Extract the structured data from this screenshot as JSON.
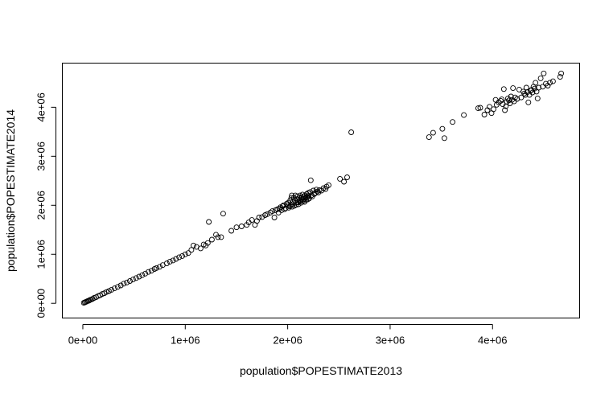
{
  "chart_data": {
    "type": "scatter",
    "title": "",
    "xlabel": "population$POPESTIMATE2013",
    "ylabel": "population$POPESTIMATE2014",
    "xlim": [
      -200000,
      4850000
    ],
    "ylim": [
      -300000,
      4900000
    ],
    "x_ticks": [
      0,
      1000000,
      2000000,
      3000000,
      4000000
    ],
    "x_tick_labels": [
      "0e+00",
      "1e+06",
      "2e+06",
      "3e+06",
      "4e+06"
    ],
    "y_ticks": [
      0,
      1000000,
      2000000,
      3000000,
      4000000
    ],
    "y_tick_labels": [
      "0e+00",
      "1e+06",
      "2e+06",
      "3e+06",
      "4e+06"
    ],
    "grid": false,
    "marker": "open-circle",
    "point_color": "#000000",
    "series": [
      {
        "points": [
          [
            10000,
            10000
          ],
          [
            20000,
            20000
          ],
          [
            30000,
            30000
          ],
          [
            40000,
            40000
          ],
          [
            50000,
            50000
          ],
          [
            60000,
            55000
          ],
          [
            70000,
            70000
          ],
          [
            80000,
            75000
          ],
          [
            95000,
            90000
          ],
          [
            110000,
            110000
          ],
          [
            130000,
            125000
          ],
          [
            150000,
            150000
          ],
          [
            170000,
            165000
          ],
          [
            190000,
            190000
          ],
          [
            210000,
            205000
          ],
          [
            230000,
            230000
          ],
          [
            255000,
            250000
          ],
          [
            280000,
            275000
          ],
          [
            310000,
            305000
          ],
          [
            340000,
            335000
          ],
          [
            370000,
            365000
          ],
          [
            400000,
            400000
          ],
          [
            430000,
            425000
          ],
          [
            460000,
            455000
          ],
          [
            490000,
            485000
          ],
          [
            520000,
            515000
          ],
          [
            550000,
            545000
          ],
          [
            580000,
            575000
          ],
          [
            610000,
            605000
          ],
          [
            640000,
            640000
          ],
          [
            670000,
            665000
          ],
          [
            700000,
            700000
          ],
          [
            720000,
            720000
          ],
          [
            750000,
            745000
          ],
          [
            780000,
            780000
          ],
          [
            820000,
            815000
          ],
          [
            850000,
            850000
          ],
          [
            880000,
            875000
          ],
          [
            910000,
            905000
          ],
          [
            940000,
            940000
          ],
          [
            970000,
            965000
          ],
          [
            1000000,
            1000000
          ],
          [
            1030000,
            1025000
          ],
          [
            1060000,
            1090000
          ],
          [
            1080000,
            1180000
          ],
          [
            1110000,
            1150000
          ],
          [
            1150000,
            1120000
          ],
          [
            1180000,
            1200000
          ],
          [
            1200000,
            1180000
          ],
          [
            1220000,
            1230000
          ],
          [
            1230000,
            1660000
          ],
          [
            1260000,
            1300000
          ],
          [
            1300000,
            1400000
          ],
          [
            1320000,
            1350000
          ],
          [
            1350000,
            1350000
          ],
          [
            1370000,
            1830000
          ],
          [
            1450000,
            1480000
          ],
          [
            1500000,
            1550000
          ],
          [
            1550000,
            1570000
          ],
          [
            1600000,
            1600000
          ],
          [
            1620000,
            1650000
          ],
          [
            1650000,
            1700000
          ],
          [
            1680000,
            1600000
          ],
          [
            1700000,
            1680000
          ],
          [
            1720000,
            1750000
          ],
          [
            1750000,
            1760000
          ],
          [
            1780000,
            1800000
          ],
          [
            1800000,
            1820000
          ],
          [
            1830000,
            1850000
          ],
          [
            1850000,
            1880000
          ],
          [
            1870000,
            1750000
          ],
          [
            1880000,
            1900000
          ],
          [
            1900000,
            1920000
          ],
          [
            1910000,
            1850000
          ],
          [
            1920000,
            1930000
          ],
          [
            1930000,
            1960000
          ],
          [
            1940000,
            1900000
          ],
          [
            1950000,
            1980000
          ],
          [
            1960000,
            2000000
          ],
          [
            1970000,
            1920000
          ],
          [
            1980000,
            1940000
          ],
          [
            1990000,
            2030000
          ],
          [
            2000000,
            2000000
          ],
          [
            2005000,
            2050000
          ],
          [
            2010000,
            1950000
          ],
          [
            2020000,
            1980000
          ],
          [
            2025000,
            2100000
          ],
          [
            2030000,
            2000000
          ],
          [
            2035000,
            2150000
          ],
          [
            2040000,
            2200000
          ],
          [
            2045000,
            1970000
          ],
          [
            2050000,
            2020000
          ],
          [
            2055000,
            2080000
          ],
          [
            2060000,
            2150000
          ],
          [
            2065000,
            1990000
          ],
          [
            2070000,
            2100000
          ],
          [
            2075000,
            2200000
          ],
          [
            2080000,
            2050000
          ],
          [
            2085000,
            2010000
          ],
          [
            2090000,
            2120000
          ],
          [
            2095000,
            2180000
          ],
          [
            2100000,
            2060000
          ],
          [
            2105000,
            2020000
          ],
          [
            2110000,
            2150000
          ],
          [
            2115000,
            2100000
          ],
          [
            2120000,
            2200000
          ],
          [
            2125000,
            2080000
          ],
          [
            2130000,
            2050000
          ],
          [
            2135000,
            2160000
          ],
          [
            2140000,
            2120000
          ],
          [
            2145000,
            2220000
          ],
          [
            2150000,
            2090000
          ],
          [
            2155000,
            2180000
          ],
          [
            2160000,
            2130000
          ],
          [
            2165000,
            2070000
          ],
          [
            2170000,
            2200000
          ],
          [
            2175000,
            2150000
          ],
          [
            2180000,
            2110000
          ],
          [
            2185000,
            2230000
          ],
          [
            2190000,
            2170000
          ],
          [
            2195000,
            2120000
          ],
          [
            2200000,
            2250000
          ],
          [
            2205000,
            2190000
          ],
          [
            2210000,
            2140000
          ],
          [
            2220000,
            2270000
          ],
          [
            2225000,
            2510000
          ],
          [
            2230000,
            2200000
          ],
          [
            2240000,
            2180000
          ],
          [
            2250000,
            2300000
          ],
          [
            2260000,
            2230000
          ],
          [
            2270000,
            2250000
          ],
          [
            2280000,
            2320000
          ],
          [
            2290000,
            2280000
          ],
          [
            2300000,
            2260000
          ],
          [
            2310000,
            2310000
          ],
          [
            2330000,
            2300000
          ],
          [
            2350000,
            2350000
          ],
          [
            2370000,
            2330000
          ],
          [
            2380000,
            2380000
          ],
          [
            2400000,
            2410000
          ],
          [
            2510000,
            2540000
          ],
          [
            2550000,
            2480000
          ],
          [
            2580000,
            2570000
          ],
          [
            2620000,
            3490000
          ],
          [
            3380000,
            3390000
          ],
          [
            3420000,
            3480000
          ],
          [
            3510000,
            3560000
          ],
          [
            3530000,
            3370000
          ],
          [
            3610000,
            3700000
          ],
          [
            3720000,
            3840000
          ],
          [
            3860000,
            3980000
          ],
          [
            3880000,
            3990000
          ],
          [
            3920000,
            3850000
          ],
          [
            3950000,
            3940000
          ],
          [
            3970000,
            4010000
          ],
          [
            3990000,
            3880000
          ],
          [
            4010000,
            3960000
          ],
          [
            4030000,
            4150000
          ],
          [
            4040000,
            4050000
          ],
          [
            4060000,
            4100000
          ],
          [
            4080000,
            4130000
          ],
          [
            4090000,
            4160000
          ],
          [
            4100000,
            4060000
          ],
          [
            4110000,
            4370000
          ],
          [
            4120000,
            3940000
          ],
          [
            4130000,
            4020000
          ],
          [
            4140000,
            4110000
          ],
          [
            4150000,
            4180000
          ],
          [
            4160000,
            4140000
          ],
          [
            4170000,
            4080000
          ],
          [
            4180000,
            4220000
          ],
          [
            4190000,
            4150000
          ],
          [
            4200000,
            4390000
          ],
          [
            4210000,
            4120000
          ],
          [
            4220000,
            4200000
          ],
          [
            4240000,
            4170000
          ],
          [
            4260000,
            4360000
          ],
          [
            4280000,
            4200000
          ],
          [
            4300000,
            4320000
          ],
          [
            4310000,
            4280000
          ],
          [
            4320000,
            4250000
          ],
          [
            4330000,
            4400000
          ],
          [
            4340000,
            4310000
          ],
          [
            4350000,
            4100000
          ],
          [
            4360000,
            4250000
          ],
          [
            4370000,
            4340000
          ],
          [
            4380000,
            4350000
          ],
          [
            4390000,
            4300000
          ],
          [
            4400000,
            4420000
          ],
          [
            4410000,
            4380000
          ],
          [
            4420000,
            4500000
          ],
          [
            4430000,
            4320000
          ],
          [
            4440000,
            4180000
          ],
          [
            4450000,
            4400000
          ],
          [
            4470000,
            4590000
          ],
          [
            4490000,
            4420000
          ],
          [
            4500000,
            4690000
          ],
          [
            4520000,
            4480000
          ],
          [
            4540000,
            4440000
          ],
          [
            4560000,
            4500000
          ],
          [
            4590000,
            4530000
          ],
          [
            4660000,
            4620000
          ],
          [
            4670000,
            4690000
          ]
        ]
      }
    ]
  }
}
